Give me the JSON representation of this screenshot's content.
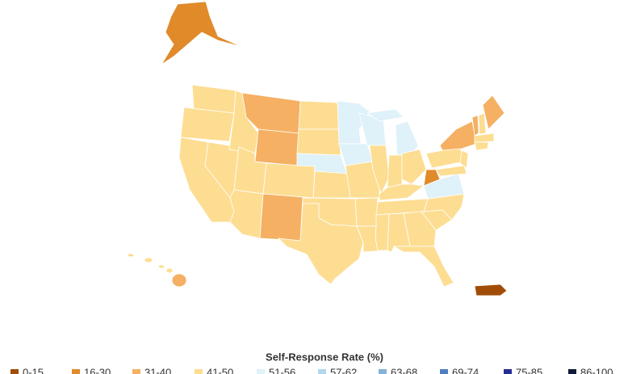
{
  "legend": {
    "title": "Self-Response Rate (%)",
    "items": [
      {
        "label": "0-15",
        "color": "#a14d07"
      },
      {
        "label": "16-30",
        "color": "#e08a2a"
      },
      {
        "label": "31-40",
        "color": "#f5b063"
      },
      {
        "label": "41-50",
        "color": "#fddd92"
      },
      {
        "label": "51-56",
        "color": "#dff1f9"
      },
      {
        "label": "57-62",
        "color": "#b3d8eb"
      },
      {
        "label": "63-68",
        "color": "#86b2d8"
      },
      {
        "label": "69-74",
        "color": "#4f7ec0"
      },
      {
        "label": "75-85",
        "color": "#262c94"
      },
      {
        "label": "86-100",
        "color": "#0f1b38"
      }
    ]
  }
}
